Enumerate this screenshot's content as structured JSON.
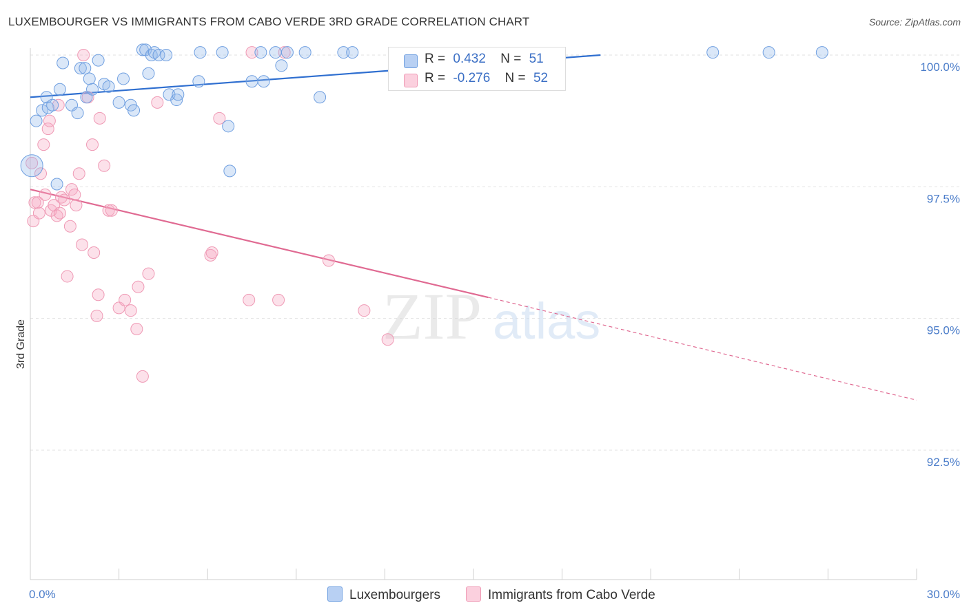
{
  "title": "LUXEMBOURGER VS IMMIGRANTS FROM CABO VERDE 3RD GRADE CORRELATION CHART",
  "source": "Source: ZipAtlas.com",
  "watermark": {
    "zip": "ZIP",
    "atlas": "atlas"
  },
  "legend": {
    "r_label": "R =",
    "n_label": "N =",
    "series1": {
      "r": "0.432",
      "n": "51"
    },
    "series2": {
      "r": "-0.276",
      "n": "52"
    }
  },
  "bottom_legend": {
    "series1": "Luxembourgers",
    "series2": "Immigrants from Cabo Verde"
  },
  "chart_data": {
    "type": "scatter",
    "title": "LUXEMBOURGER VS IMMIGRANTS FROM CABO VERDE 3RD GRADE CORRELATION CHART",
    "xlabel": "",
    "ylabel": "3rd Grade",
    "xlim": [
      0,
      30
    ],
    "ylim": [
      90.0,
      100.5
    ],
    "x_tick_labels": [
      "0.0%",
      "30.0%"
    ],
    "y_ticks": [
      92.5,
      95.0,
      97.5,
      100.0
    ],
    "y_tick_labels": [
      "92.5%",
      "95.0%",
      "97.5%",
      "100.0%"
    ],
    "colors": {
      "series1": "#6f9fe0",
      "series1_line": "#2f6fd0",
      "series2": "#ef9ab5",
      "series2_line": "#e06a92"
    },
    "series": [
      {
        "name": "Luxembourgers",
        "r": 0.432,
        "n": 51,
        "trend": {
          "x0": 0.0,
          "y0": 99.2,
          "x1": 19.3,
          "y1": 100.0,
          "dashed_to": null
        },
        "points": [
          [
            0.05,
            97.9
          ],
          [
            0.2,
            98.75
          ],
          [
            0.4,
            98.95
          ],
          [
            0.55,
            99.2
          ],
          [
            0.6,
            99.0
          ],
          [
            0.75,
            99.05
          ],
          [
            1.0,
            99.35
          ],
          [
            1.1,
            99.85
          ],
          [
            0.9,
            97.55
          ],
          [
            1.4,
            99.05
          ],
          [
            1.6,
            98.9
          ],
          [
            1.7,
            99.75
          ],
          [
            1.85,
            99.75
          ],
          [
            1.9,
            99.2
          ],
          [
            2.0,
            99.55
          ],
          [
            2.1,
            99.35
          ],
          [
            2.3,
            99.9
          ],
          [
            2.5,
            99.45
          ],
          [
            2.65,
            99.4
          ],
          [
            3.0,
            99.1
          ],
          [
            3.15,
            99.55
          ],
          [
            3.4,
            99.05
          ],
          [
            3.5,
            98.95
          ],
          [
            3.8,
            100.1
          ],
          [
            3.9,
            100.1
          ],
          [
            4.0,
            99.65
          ],
          [
            4.1,
            100.0
          ],
          [
            4.2,
            100.05
          ],
          [
            4.35,
            100.0
          ],
          [
            4.6,
            100.0
          ],
          [
            4.7,
            99.25
          ],
          [
            4.95,
            99.15
          ],
          [
            5.0,
            99.25
          ],
          [
            5.7,
            99.5
          ],
          [
            5.75,
            100.05
          ],
          [
            6.5,
            100.05
          ],
          [
            6.7,
            98.65
          ],
          [
            6.75,
            97.8
          ],
          [
            7.5,
            99.5
          ],
          [
            7.8,
            100.05
          ],
          [
            7.9,
            99.5
          ],
          [
            8.3,
            100.05
          ],
          [
            8.7,
            100.05
          ],
          [
            8.5,
            99.8
          ],
          [
            9.3,
            100.05
          ],
          [
            9.8,
            99.2
          ],
          [
            10.6,
            100.05
          ],
          [
            10.9,
            100.05
          ],
          [
            23.1,
            100.05
          ],
          [
            25.0,
            100.05
          ],
          [
            26.8,
            100.05
          ]
        ]
      },
      {
        "name": "Immigrants from Cabo Verde",
        "r": -0.276,
        "n": 52,
        "trend": {
          "x0": 0.0,
          "y0": 97.45,
          "x1": 15.5,
          "y1": 95.4,
          "dashed_to": [
            30.0,
            93.45
          ]
        },
        "points": [
          [
            0.05,
            97.95
          ],
          [
            0.1,
            96.85
          ],
          [
            0.15,
            97.2
          ],
          [
            0.25,
            97.2
          ],
          [
            0.3,
            97.0
          ],
          [
            0.35,
            97.75
          ],
          [
            0.45,
            98.3
          ],
          [
            0.5,
            97.35
          ],
          [
            0.6,
            98.6
          ],
          [
            0.65,
            98.75
          ],
          [
            0.7,
            97.05
          ],
          [
            0.8,
            97.15
          ],
          [
            0.9,
            96.95
          ],
          [
            0.95,
            99.05
          ],
          [
            1.0,
            97.0
          ],
          [
            1.05,
            97.3
          ],
          [
            1.15,
            97.25
          ],
          [
            1.25,
            95.8
          ],
          [
            1.35,
            96.75
          ],
          [
            1.4,
            97.45
          ],
          [
            1.5,
            97.35
          ],
          [
            1.55,
            97.15
          ],
          [
            1.65,
            97.75
          ],
          [
            1.75,
            96.4
          ],
          [
            1.8,
            100.0
          ],
          [
            1.95,
            99.2
          ],
          [
            2.1,
            98.3
          ],
          [
            2.15,
            96.25
          ],
          [
            2.25,
            95.05
          ],
          [
            2.3,
            95.45
          ],
          [
            2.35,
            98.8
          ],
          [
            2.5,
            97.9
          ],
          [
            2.65,
            97.05
          ],
          [
            2.75,
            97.05
          ],
          [
            3.0,
            95.2
          ],
          [
            3.2,
            95.35
          ],
          [
            3.4,
            95.15
          ],
          [
            3.6,
            94.8
          ],
          [
            3.65,
            95.6
          ],
          [
            3.8,
            93.9
          ],
          [
            4.0,
            95.85
          ],
          [
            4.3,
            99.1
          ],
          [
            6.1,
            96.2
          ],
          [
            6.15,
            96.25
          ],
          [
            6.4,
            98.8
          ],
          [
            7.4,
            95.35
          ],
          [
            7.5,
            100.05
          ],
          [
            8.4,
            95.35
          ],
          [
            8.6,
            100.05
          ],
          [
            10.1,
            96.1
          ],
          [
            11.3,
            95.15
          ],
          [
            12.1,
            94.6
          ]
        ]
      }
    ]
  }
}
